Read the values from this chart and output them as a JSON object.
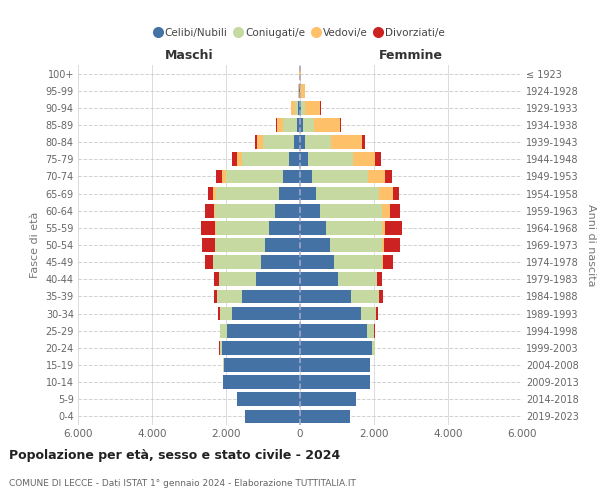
{
  "age_groups": [
    "0-4",
    "5-9",
    "10-14",
    "15-19",
    "20-24",
    "25-29",
    "30-34",
    "35-39",
    "40-44",
    "45-49",
    "50-54",
    "55-59",
    "60-64",
    "65-69",
    "70-74",
    "75-79",
    "80-84",
    "85-89",
    "90-94",
    "95-99",
    "100+"
  ],
  "birth_years": [
    "2019-2023",
    "2014-2018",
    "2009-2013",
    "2004-2008",
    "1999-2003",
    "1994-1998",
    "1989-1993",
    "1984-1988",
    "1979-1983",
    "1974-1978",
    "1969-1973",
    "1964-1968",
    "1959-1963",
    "1954-1958",
    "1949-1953",
    "1944-1948",
    "1939-1943",
    "1934-1938",
    "1929-1933",
    "1924-1928",
    "≤ 1923"
  ],
  "maschi": {
    "celibi": [
      1480,
      1700,
      2080,
      2060,
      2120,
      1980,
      1850,
      1580,
      1200,
      1060,
      950,
      830,
      680,
      560,
      460,
      310,
      170,
      80,
      45,
      15,
      8
    ],
    "coniugati": [
      5,
      5,
      5,
      12,
      55,
      180,
      320,
      650,
      1000,
      1280,
      1350,
      1450,
      1620,
      1720,
      1550,
      1250,
      820,
      380,
      100,
      25,
      4
    ],
    "vedovi": [
      0,
      0,
      0,
      0,
      0,
      0,
      0,
      0,
      2,
      5,
      6,
      12,
      22,
      65,
      110,
      130,
      160,
      155,
      95,
      18,
      2
    ],
    "divorziati": [
      0,
      0,
      1,
      2,
      5,
      12,
      35,
      85,
      110,
      210,
      340,
      380,
      250,
      145,
      160,
      140,
      75,
      28,
      12,
      4,
      1
    ]
  },
  "femmine": {
    "nubili": [
      1350,
      1500,
      1880,
      1880,
      1950,
      1800,
      1650,
      1380,
      1020,
      910,
      800,
      690,
      540,
      420,
      320,
      220,
      130,
      70,
      35,
      12,
      8
    ],
    "coniugate": [
      5,
      5,
      12,
      22,
      85,
      210,
      410,
      760,
      1060,
      1310,
      1420,
      1520,
      1670,
      1720,
      1520,
      1200,
      720,
      320,
      90,
      25,
      4
    ],
    "vedove": [
      0,
      0,
      0,
      0,
      0,
      2,
      5,
      5,
      12,
      32,
      52,
      85,
      210,
      360,
      460,
      620,
      820,
      680,
      420,
      90,
      5
    ],
    "divorziate": [
      0,
      0,
      1,
      2,
      5,
      12,
      32,
      85,
      125,
      260,
      420,
      470,
      295,
      165,
      180,
      160,
      95,
      28,
      18,
      4,
      1
    ]
  },
  "colors": {
    "celibi": "#4472a4",
    "coniugati": "#c5d9a0",
    "vedovi": "#ffc06a",
    "divorziati": "#cc2222"
  },
  "xlim": 6000,
  "xticks": [
    -6000,
    -4000,
    -2000,
    0,
    2000,
    4000,
    6000
  ],
  "xlabels": [
    "6.000",
    "4.000",
    "2.000",
    "0",
    "2.000",
    "4.000",
    "6.000"
  ],
  "title": "Popolazione per età, sesso e stato civile - 2024",
  "subtitle": "COMUNE DI LECCE - Dati ISTAT 1° gennaio 2024 - Elaborazione TUTTITALIA.IT",
  "ylabel_left": "Fasce di età",
  "ylabel_right": "Anni di nascita",
  "header_maschi": "Maschi",
  "header_femmine": "Femmine",
  "legend_labels": [
    "Celibi/Nubili",
    "Coniugati/e",
    "Vedovi/e",
    "Divorziati/e"
  ],
  "bg_color": "#ffffff",
  "grid_color": "#cccccc",
  "bar_height": 0.8
}
